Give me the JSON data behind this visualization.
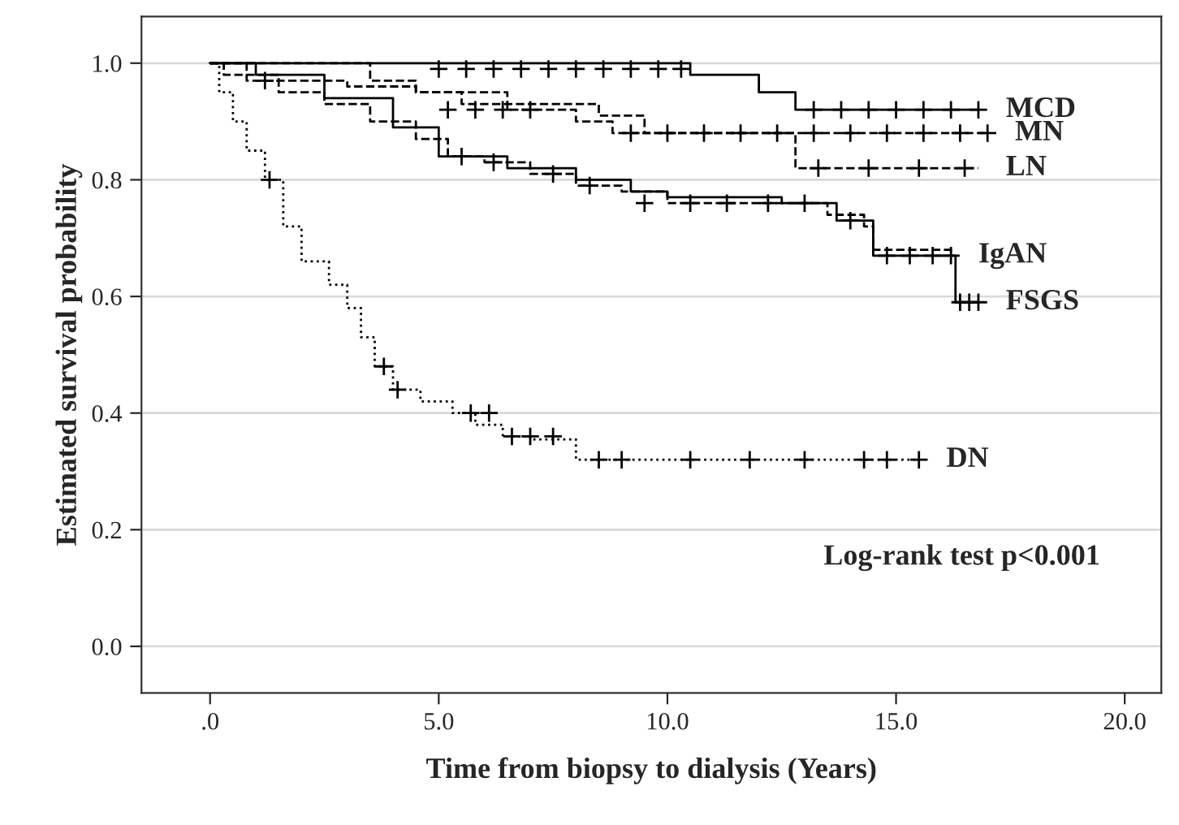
{
  "chart_data": {
    "type": "step",
    "xlabel": "Time from biopsy to dialysis (Years)",
    "ylabel": "Estimated survival probability",
    "xlim": [
      -1.5,
      20.8
    ],
    "ylim": [
      -0.08,
      1.08
    ],
    "xticks": [
      {
        "value": 0,
        "label": ".0"
      },
      {
        "value": 5,
        "label": "5.0"
      },
      {
        "value": 10,
        "label": "10.0"
      },
      {
        "value": 15,
        "label": "15.0"
      },
      {
        "value": 20,
        "label": "20.0"
      }
    ],
    "yticks": [
      {
        "value": 0,
        "label": "0.0"
      },
      {
        "value": 0.2,
        "label": "0.2"
      },
      {
        "value": 0.4,
        "label": "0.4"
      },
      {
        "value": 0.6,
        "label": "0.6"
      },
      {
        "value": 0.8,
        "label": "0.8"
      },
      {
        "value": 1.0,
        "label": "1.0"
      }
    ],
    "grid": "y",
    "legend": false,
    "annotations": [
      "Log-rank test p<0.001"
    ],
    "series": [
      {
        "name": "MCD",
        "line_style": "solid",
        "color": "#000000",
        "x": [
          0,
          10.5,
          12.0,
          12.8,
          16.8
        ],
        "values": [
          1.0,
          0.98,
          0.95,
          0.92,
          0.92
        ]
      },
      {
        "name": "MN",
        "line_style": "dashed",
        "color": "#000000",
        "x": [
          0,
          3.5,
          4.5,
          5.5,
          6.5,
          8.0,
          8.8,
          17.0
        ],
        "values": [
          1.0,
          0.97,
          0.95,
          0.93,
          0.92,
          0.9,
          0.88,
          0.88
        ]
      },
      {
        "name": "LN",
        "line_style": "dashed",
        "color": "#000000",
        "x": [
          0,
          0.3,
          1.5,
          3.0,
          4.5,
          6.5,
          8.5,
          9.5,
          12.8,
          16.8
        ],
        "values": [
          1.0,
          0.98,
          0.97,
          0.96,
          0.95,
          0.93,
          0.91,
          0.88,
          0.82,
          0.82
        ]
      },
      {
        "name": "IgAN",
        "line_style": "dashed",
        "color": "#000000",
        "x": [
          0,
          0.8,
          1.5,
          2.5,
          3.5,
          4.5,
          5.2,
          6.0,
          7.0,
          8.0,
          9.0,
          10.0,
          13.5,
          14.3,
          14.5,
          16.2
        ],
        "values": [
          1.0,
          0.97,
          0.95,
          0.93,
          0.9,
          0.87,
          0.84,
          0.83,
          0.81,
          0.79,
          0.78,
          0.76,
          0.74,
          0.72,
          0.68,
          0.67
        ]
      },
      {
        "name": "FSGS",
        "line_style": "solid",
        "color": "#000000",
        "x": [
          0,
          1.0,
          2.5,
          4.0,
          5.0,
          6.5,
          8.0,
          9.2,
          10.0,
          12.5,
          13.7,
          14.5,
          16.3,
          16.8
        ],
        "values": [
          1.0,
          0.98,
          0.94,
          0.89,
          0.84,
          0.82,
          0.8,
          0.78,
          0.77,
          0.76,
          0.73,
          0.67,
          0.59,
          0.59
        ]
      },
      {
        "name": "DN",
        "line_style": "dotted",
        "color": "#000000",
        "x": [
          0,
          0.2,
          0.5,
          0.8,
          1.2,
          1.6,
          2.0,
          2.6,
          3.0,
          3.3,
          3.6,
          4.0,
          4.6,
          5.3,
          5.8,
          6.4,
          7.0,
          8.0,
          15.5
        ],
        "values": [
          1.0,
          0.95,
          0.9,
          0.85,
          0.8,
          0.72,
          0.66,
          0.62,
          0.58,
          0.53,
          0.48,
          0.44,
          0.42,
          0.4,
          0.38,
          0.36,
          0.355,
          0.32,
          0.32
        ]
      },
      {
        "type": "scatter",
        "marker": "cross",
        "color": "#000000",
        "x": [
          5.0,
          5.6,
          6.2,
          6.8,
          7.4,
          8.0,
          8.6,
          9.2,
          9.8,
          10.3,
          13.2,
          13.8,
          14.4,
          15.0,
          15.6,
          16.2,
          16.8
        ],
        "values": [
          0.99,
          0.99,
          0.99,
          0.99,
          0.99,
          0.99,
          0.99,
          0.99,
          0.99,
          0.99,
          0.92,
          0.92,
          0.92,
          0.92,
          0.92,
          0.92,
          0.92
        ]
      },
      {
        "type": "scatter",
        "marker": "cross",
        "color": "#000000",
        "x": [
          5.2,
          5.8,
          6.4,
          7.0,
          9.2,
          10.0,
          10.8,
          11.6,
          12.4,
          13.2,
          14.0,
          14.8,
          15.6,
          16.4,
          17.0
        ],
        "values": [
          0.92,
          0.92,
          0.92,
          0.92,
          0.88,
          0.88,
          0.88,
          0.88,
          0.88,
          0.88,
          0.88,
          0.88,
          0.88,
          0.88,
          0.88
        ]
      },
      {
        "type": "scatter",
        "marker": "cross",
        "color": "#000000",
        "x": [
          1.2,
          13.3,
          14.4,
          15.5,
          16.5
        ],
        "values": [
          0.97,
          0.82,
          0.82,
          0.82,
          0.82
        ]
      },
      {
        "type": "scatter",
        "marker": "cross",
        "color": "#000000",
        "x": [
          5.5,
          6.2,
          7.5,
          8.3,
          9.5,
          10.5,
          11.3,
          12.2,
          13.0,
          14.0,
          14.8,
          15.3,
          15.8,
          16.2
        ],
        "values": [
          0.84,
          0.83,
          0.81,
          0.79,
          0.76,
          0.76,
          0.76,
          0.76,
          0.76,
          0.73,
          0.67,
          0.67,
          0.67,
          0.67
        ]
      },
      {
        "type": "scatter",
        "marker": "cross",
        "color": "#000000",
        "x": [
          16.4,
          16.6,
          16.8
        ],
        "values": [
          0.59,
          0.59,
          0.59
        ]
      },
      {
        "type": "scatter",
        "marker": "cross",
        "color": "#000000",
        "x": [
          1.3,
          3.8,
          4.1,
          5.7,
          6.1,
          6.6,
          7.0,
          7.5,
          8.5,
          9.0,
          10.5,
          11.8,
          13.0,
          14.3,
          14.8,
          15.5
        ],
        "values": [
          0.8,
          0.48,
          0.44,
          0.4,
          0.4,
          0.36,
          0.36,
          0.36,
          0.32,
          0.32,
          0.32,
          0.32,
          0.32,
          0.32,
          0.32,
          0.32
        ]
      }
    ]
  }
}
